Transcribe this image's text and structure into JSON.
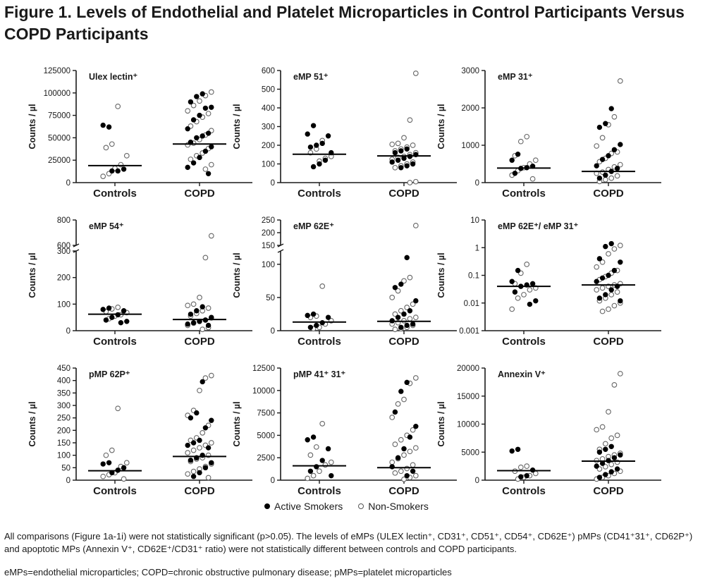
{
  "title": "Figure 1. Levels of Endothelial and Platelet Microparticles in Control Participants Versus COPD Participants",
  "legend": {
    "active": "Active Smokers",
    "non": "Non-Smokers"
  },
  "caption_text": "All comparisons (Figure 1a-1i) were not statistically significant (p>0.05). The levels of eMPs (ULEX lectin⁺, CD31⁺, CD51⁺, CD54⁺, CD62E⁺) pMPs (CD41⁺31⁺, CD62P⁺) and apoptotic MPs (Annexin V⁺, CD62E⁺/CD31⁺ ratio) were not statistically different between controls and COPD participants.",
  "abbrev_text": "eMPs=endothelial microparticles; COPD=chronic obstructive pulmonary disease; pMPs=platelet microparticles",
  "colors": {
    "active": "#000000",
    "non_smoker_stroke": "#666666",
    "axis": "#1a1a1a"
  },
  "chart_data": [
    {
      "type": "scatter",
      "title": "Ulex lectin⁺",
      "ylabel": "Counts / µl",
      "categories": [
        "Controls",
        "COPD"
      ],
      "ylim": [
        0,
        125000
      ],
      "yticks": [
        0,
        25000,
        50000,
        75000,
        100000,
        125000
      ],
      "ytick_labels": [
        "0",
        "25000",
        "50000",
        "75000",
        "100000",
        "125000"
      ],
      "medians": [
        19000,
        43000
      ],
      "active": [
        [
          62000,
          64000,
          15000,
          13000,
          13000
        ],
        [
          99000,
          96000,
          90000,
          84000,
          83000,
          75000,
          70000,
          60000,
          55000,
          52000,
          50000,
          45000,
          40000,
          35000,
          28000,
          22000,
          17000,
          10000
        ]
      ],
      "non": [
        [
          85000,
          43000,
          39000,
          30000,
          20000,
          16000,
          10000,
          7000
        ],
        [
          101000,
          97000,
          91000,
          86000,
          80000,
          77000,
          73000,
          68000,
          63000,
          58000,
          53000,
          48000,
          44000,
          42000,
          38000,
          33000,
          30000,
          26000,
          20000,
          15000
        ]
      ]
    },
    {
      "type": "scatter",
      "title": "eMP 51⁺",
      "ylabel": "Counts / µl",
      "categories": [
        "Controls",
        "COPD"
      ],
      "ylim": [
        0,
        600
      ],
      "yticks": [
        0,
        100,
        200,
        300,
        400,
        500,
        600
      ],
      "ytick_labels": [
        "0",
        "100",
        "200",
        "300",
        "400",
        "500",
        "600"
      ],
      "medians": [
        152,
        143
      ],
      "active": [
        [
          305,
          260,
          250,
          210,
          200,
          190,
          160,
          120,
          100,
          85
        ],
        [
          180,
          170,
          160,
          150,
          140,
          130,
          120,
          110,
          100,
          90,
          80
        ]
      ],
      "non": [
        [
          225,
          180,
          160,
          140,
          130,
          115
        ],
        [
          585,
          335,
          240,
          210,
          205,
          200,
          190,
          180,
          170,
          160,
          150,
          140,
          135,
          125,
          110,
          100,
          90,
          80,
          5,
          0
        ]
      ]
    },
    {
      "type": "scatter",
      "title": "eMP 31⁺",
      "ylabel": "Counts / µl",
      "categories": [
        "Controls",
        "COPD"
      ],
      "ylim": [
        0,
        3000
      ],
      "yticks": [
        0,
        1000,
        2000,
        3000
      ],
      "ytick_labels": [
        "0",
        "1000",
        "2000",
        "3000"
      ],
      "medians": [
        390,
        300
      ],
      "active": [
        [
          760,
          600,
          440,
          400,
          380,
          250
        ],
        [
          1980,
          1580,
          1480,
          1020,
          880,
          720,
          620,
          450,
          380,
          300,
          200,
          120
        ]
      ],
      "non": [
        [
          1230,
          1100,
          720,
          600,
          500,
          400,
          320,
          200,
          100
        ],
        [
          2720,
          1760,
          1550,
          1200,
          980,
          820,
          780,
          650,
          560,
          480,
          420,
          350,
          280,
          250,
          180,
          120,
          80,
          30
        ]
      ]
    },
    {
      "type": "scatter",
      "title": "eMP 54⁺",
      "ylabel": "Counts / µl",
      "categories": [
        "Controls",
        "COPD"
      ],
      "broken": true,
      "seg_low": [
        0,
        300
      ],
      "seg_high": [
        600,
        800
      ],
      "yticks": [
        0,
        100,
        200,
        300,
        600,
        800
      ],
      "ytick_labels": [
        "0",
        "100",
        "200",
        "300",
        "600",
        "800"
      ],
      "medians": [
        62,
        42
      ],
      "active": [
        [
          85,
          80,
          75,
          60,
          50,
          40,
          35,
          30
        ],
        [
          90,
          75,
          62,
          50,
          40,
          35,
          30,
          25,
          20
        ]
      ],
      "non": [
        [
          88,
          82,
          72,
          68,
          60,
          55,
          45
        ],
        [
          675,
          275,
          125,
          100,
          95,
          85,
          75,
          65,
          55,
          48,
          40,
          35,
          28,
          20,
          12,
          5
        ]
      ]
    },
    {
      "type": "scatter",
      "title": "eMP 62E⁺",
      "ylabel": "Counts / µl",
      "categories": [
        "Controls",
        "COPD"
      ],
      "broken": true,
      "seg_low": [
        0,
        120
      ],
      "seg_high": [
        150,
        250
      ],
      "yticks": [
        0,
        50,
        100,
        150,
        200,
        250
      ],
      "ytick_labels": [
        "0",
        "50",
        "100",
        "150",
        "200",
        "250"
      ],
      "medians": [
        13,
        14
      ],
      "active": [
        [
          25,
          23,
          20,
          12,
          8,
          5
        ],
        [
          110,
          70,
          65,
          45,
          30,
          25,
          20,
          15,
          10,
          8,
          5
        ]
      ],
      "non": [
        [
          67,
          22,
          20,
          15,
          10,
          5,
          3
        ],
        [
          228,
          80,
          75,
          60,
          50,
          40,
          35,
          30,
          25,
          20,
          18,
          15,
          12,
          10,
          8,
          5,
          3,
          2
        ]
      ]
    },
    {
      "type": "scatter",
      "title": "eMP 62E⁺/ eMP 31⁺",
      "ylabel": "Counts / µl",
      "categories": [
        "Controls",
        "COPD"
      ],
      "log": true,
      "ylim": [
        0.001,
        10
      ],
      "yticks": [
        0.001,
        0.01,
        0.1,
        1,
        10
      ],
      "ytick_labels": [
        "0.001",
        "0.01",
        "0.1",
        "1",
        "10"
      ],
      "medians": [
        0.04,
        0.045
      ],
      "active": [
        [
          0.15,
          0.06,
          0.05,
          0.045,
          0.04,
          0.025,
          0.012,
          0.009
        ],
        [
          1.4,
          1.1,
          0.4,
          0.3,
          0.15,
          0.1,
          0.08,
          0.06,
          0.04,
          0.03,
          0.02,
          0.015,
          0.012
        ]
      ],
      "non": [
        [
          0.25,
          0.12,
          0.05,
          0.035,
          0.03,
          0.02,
          0.015,
          0.006
        ],
        [
          1.2,
          0.9,
          0.6,
          0.3,
          0.2,
          0.15,
          0.12,
          0.09,
          0.07,
          0.05,
          0.045,
          0.04,
          0.035,
          0.03,
          0.025,
          0.02,
          0.015,
          0.012,
          0.01,
          0.008,
          0.006,
          0.005
        ]
      ]
    },
    {
      "type": "scatter",
      "title": "pMP 62P⁺",
      "ylabel": "Counts / µl",
      "categories": [
        "Controls",
        "COPD"
      ],
      "ylim": [
        0,
        450
      ],
      "yticks": [
        0,
        50,
        100,
        150,
        200,
        250,
        300,
        350,
        400,
        450
      ],
      "ytick_labels": [
        "0",
        "50",
        "100",
        "150",
        "200",
        "250",
        "300",
        "350",
        "400",
        "450"
      ],
      "medians": [
        38,
        95
      ],
      "active": [
        [
          70,
          65,
          50,
          40,
          30
        ],
        [
          395,
          270,
          250,
          240,
          210,
          160,
          150,
          140,
          130,
          100,
          90,
          80,
          70,
          50,
          30,
          15
        ]
      ],
      "non": [
        [
          288,
          120,
          100,
          70,
          55,
          30,
          22,
          15,
          5
        ],
        [
          420,
          410,
          360,
          280,
          260,
          220,
          190,
          170,
          160,
          150,
          140,
          130,
          120,
          110,
          100,
          90,
          85,
          75,
          65,
          55,
          45,
          35,
          25,
          10
        ]
      ]
    },
    {
      "type": "scatter",
      "title": "pMP 41⁺ 31⁺",
      "ylabel": "Counts / µl",
      "categories": [
        "Controls",
        "COPD"
      ],
      "ylim": [
        0,
        12500
      ],
      "yticks": [
        0,
        2500,
        5000,
        7500,
        10000,
        12500
      ],
      "ytick_labels": [
        "0",
        "2500",
        "5000",
        "7500",
        "10000",
        "12500"
      ],
      "medians": [
        1600,
        1400
      ],
      "active": [
        [
          4800,
          4500,
          3500,
          2200,
          1500,
          1000,
          500
        ],
        [
          10900,
          9900,
          7600,
          6000,
          4800,
          3500,
          2500,
          1500,
          1000,
          500
        ]
      ],
      "non": [
        [
          6300,
          3700,
          2800,
          2000,
          1700,
          1000,
          500,
          200
        ],
        [
          11400,
          10800,
          9000,
          8500,
          7000,
          5600,
          5000,
          4500,
          4000,
          3600,
          3200,
          2800,
          2400,
          2000,
          1700,
          1300,
          1000,
          800,
          500,
          300,
          100
        ]
      ]
    },
    {
      "type": "scatter",
      "title": "Annexin V⁺",
      "ylabel": "Counts / µl",
      "categories": [
        "Controls",
        "COPD"
      ],
      "ylim": [
        0,
        20000
      ],
      "yticks": [
        0,
        5000,
        10000,
        15000,
        20000
      ],
      "ytick_labels": [
        "0",
        "5000",
        "10000",
        "15000",
        "20000"
      ],
      "medians": [
        1700,
        3400
      ],
      "active": [
        [
          5500,
          5200,
          1800,
          800,
          600
        ],
        [
          6000,
          5500,
          5000,
          4500,
          4000,
          3500,
          3000,
          2500,
          2000,
          1500,
          1000,
          500
        ]
      ],
      "non": [
        [
          2500,
          2300,
          1600,
          1200,
          800,
          500,
          200
        ],
        [
          19000,
          17000,
          12200,
          9500,
          9000,
          8000,
          7500,
          6500,
          5500,
          4800,
          4500,
          4200,
          3800,
          3500,
          3200,
          2800,
          2400,
          2000,
          1600,
          1200,
          800,
          500,
          200
        ]
      ]
    }
  ]
}
